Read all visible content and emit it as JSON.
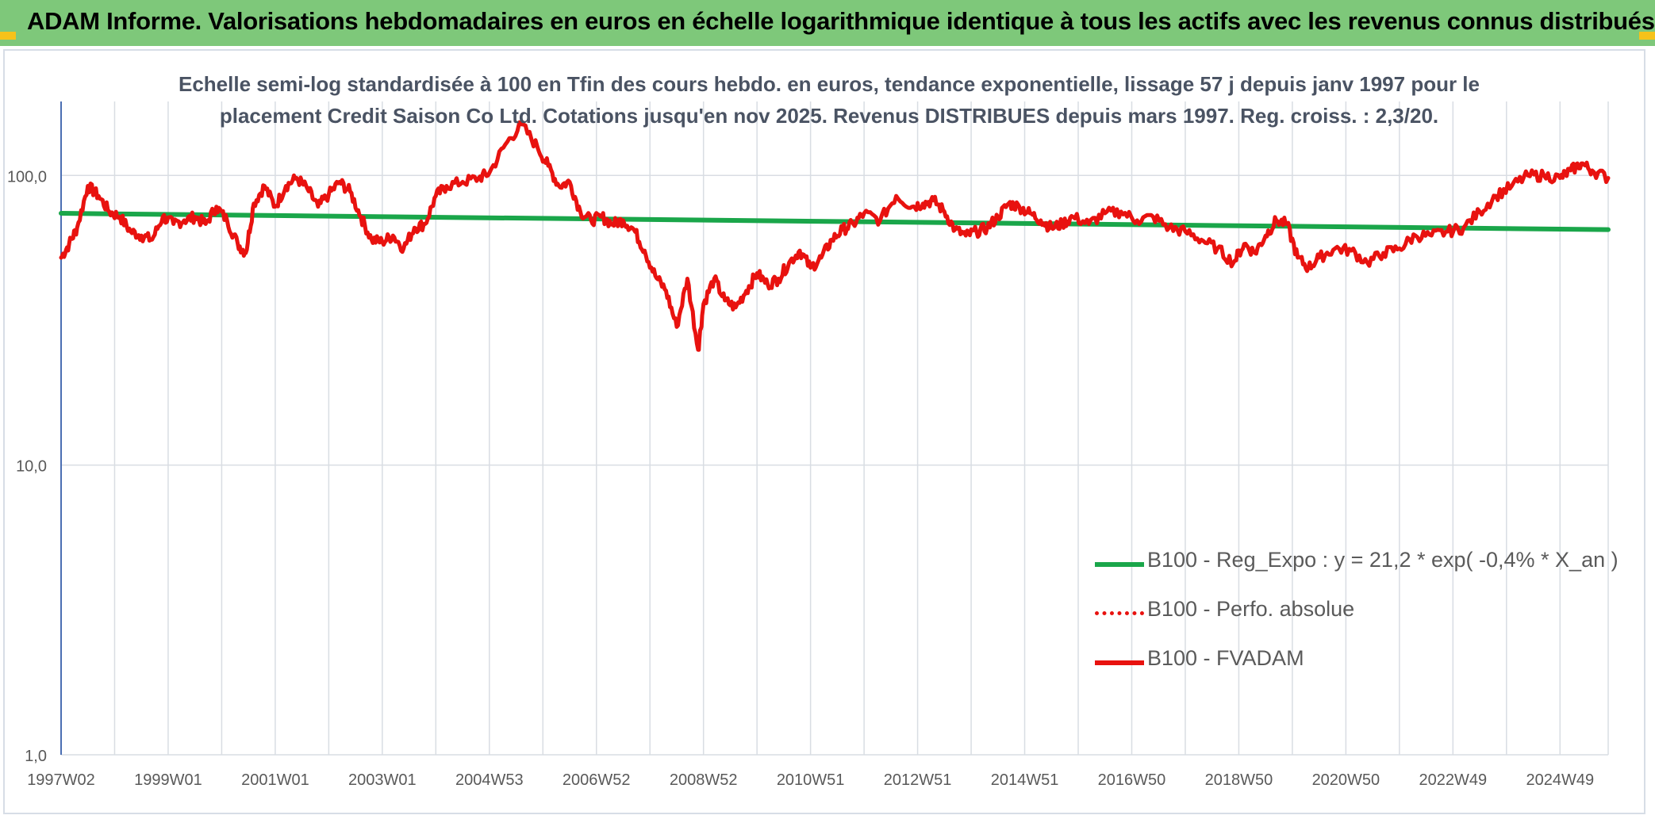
{
  "banner": {
    "title": "ADAM Informe. Valorisations hebdomadaires en euros en échelle logarithmique identique à tous les actifs avec les revenus connus distribués"
  },
  "colors": {
    "banner_bg": "#7ec87a",
    "regression": "#1aa64a",
    "fvadam": "#e8120f",
    "perfo": "#e8120f",
    "grid": "#d9dde3",
    "axis_text": "#595959"
  },
  "chart_data": {
    "type": "line",
    "title_line1": "Echelle semi-log standardisée à 100 en Tfin des cours hebdo. en euros, tendance exponentielle, lissage 57 j depuis janv 1997 pour le",
    "title_line2": "placement Credit Saison Co Ltd. Cotations jusqu'en nov 2025. Revenus DISTRIBUES depuis mars 1997. Reg. croiss. : 2,3/20.",
    "yscale": "log",
    "ylim": [
      1,
      180
    ],
    "yticks": [
      {
        "value": 1,
        "label": "1,0"
      },
      {
        "value": 10,
        "label": "10,0"
      },
      {
        "value": 100,
        "label": "100,0"
      }
    ],
    "xlim": [
      1997.0,
      2025.9
    ],
    "xticks": [
      {
        "pos": 1997.0,
        "label": "1997W02"
      },
      {
        "pos": 1999.0,
        "label": "1999W01"
      },
      {
        "pos": 2001.0,
        "label": "2001W01"
      },
      {
        "pos": 2003.0,
        "label": "2003W01"
      },
      {
        "pos": 2005.0,
        "label": "2004W53"
      },
      {
        "pos": 2007.0,
        "label": "2006W52"
      },
      {
        "pos": 2009.0,
        "label": "2008W52"
      },
      {
        "pos": 2011.0,
        "label": "2010W51"
      },
      {
        "pos": 2013.0,
        "label": "2012W51"
      },
      {
        "pos": 2015.0,
        "label": "2014W51"
      },
      {
        "pos": 2017.0,
        "label": "2016W50"
      },
      {
        "pos": 2019.0,
        "label": "2018W50"
      },
      {
        "pos": 2021.0,
        "label": "2020W50"
      },
      {
        "pos": 2023.0,
        "label": "2022W49"
      },
      {
        "pos": 2025.0,
        "label": "2024W49"
      }
    ],
    "legend_position": "right",
    "series": [
      {
        "name": "B100 - Reg_Expo : y = 21,2 * exp( -0,4% *  X_an )",
        "style": "solid-green",
        "x": [
          1997.0,
          2025.9
        ],
        "values": [
          74,
          65
        ]
      },
      {
        "name": "B100 - Perfo. absolue",
        "style": "dotted-red",
        "x": [],
        "values": []
      },
      {
        "name": "B100 - FVADAM",
        "style": "solid-red",
        "x": [
          1997.0,
          1997.15,
          1997.3,
          1997.5,
          1997.7,
          1997.9,
          1998.1,
          1998.3,
          1998.5,
          1998.7,
          1998.9,
          1999.1,
          1999.3,
          1999.5,
          1999.7,
          1999.9,
          2000.1,
          2000.3,
          2000.45,
          2000.6,
          2000.8,
          2001.0,
          2001.2,
          2001.4,
          2001.6,
          2001.8,
          2002.0,
          2002.2,
          2002.4,
          2002.6,
          2002.8,
          2003.0,
          2003.2,
          2003.4,
          2003.6,
          2003.8,
          2004.0,
          2004.2,
          2004.5,
          2004.8,
          2005.0,
          2005.3,
          2005.6,
          2005.9,
          2006.1,
          2006.3,
          2006.5,
          2006.7,
          2006.9,
          2007.1,
          2007.3,
          2007.5,
          2007.7,
          2007.9,
          2008.1,
          2008.3,
          2008.5,
          2008.7,
          2008.9,
          2009.0,
          2009.2,
          2009.4,
          2009.6,
          2009.8,
          2010.0,
          2010.2,
          2010.4,
          2010.6,
          2010.8,
          2011.0,
          2011.2,
          2011.4,
          2011.6,
          2011.8,
          2012.0,
          2012.3,
          2012.6,
          2012.9,
          2013.1,
          2013.3,
          2013.5,
          2013.7,
          2013.9,
          2014.1,
          2014.3,
          2014.5,
          2014.7,
          2014.9,
          2015.1,
          2015.3,
          2015.5,
          2015.7,
          2015.9,
          2016.2,
          2016.5,
          2016.8,
          2017.1,
          2017.4,
          2017.7,
          2018.0,
          2018.3,
          2018.6,
          2018.9,
          2019.1,
          2019.3,
          2019.5,
          2019.7,
          2019.9,
          2020.1,
          2020.3,
          2020.5,
          2020.8,
          2021.1,
          2021.4,
          2021.7,
          2022.0,
          2022.3,
          2022.6,
          2022.9,
          2023.2,
          2023.5,
          2023.8,
          2024.1,
          2024.4,
          2024.7,
          2025.0,
          2025.2,
          2025.4,
          2025.6,
          2025.9
        ],
        "values": [
          52,
          58,
          66,
          92,
          85,
          75,
          72,
          64,
          62,
          60,
          72,
          68,
          70,
          72,
          68,
          78,
          70,
          58,
          54,
          80,
          92,
          78,
          92,
          98,
          90,
          78,
          86,
          95,
          88,
          72,
          60,
          59,
          62,
          56,
          66,
          68,
          85,
          92,
          95,
          98,
          102,
          128,
          150,
          125,
          108,
          92,
          95,
          75,
          70,
          72,
          68,
          70,
          65,
          55,
          45,
          40,
          30,
          44,
          25,
          36,
          44,
          37,
          35,
          40,
          46,
          42,
          44,
          50,
          55,
          48,
          52,
          60,
          65,
          68,
          74,
          70,
          85,
          78,
          80,
          82,
          75,
          65,
          62,
          64,
          66,
          72,
          80,
          78,
          74,
          70,
          66,
          68,
          72,
          68,
          74,
          75,
          70,
          72,
          66,
          64,
          60,
          56,
          50,
          58,
          54,
          62,
          70,
          68,
          52,
          48,
          52,
          56,
          55,
          50,
          54,
          56,
          62,
          62,
          64,
          66,
          75,
          85,
          92,
          100,
          100,
          98,
          104,
          110,
          104,
          98
        ]
      }
    ]
  }
}
